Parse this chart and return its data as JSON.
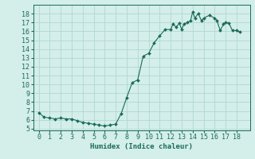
{
  "x": [
    0,
    0.5,
    1,
    1.5,
    2,
    2.5,
    3,
    3.5,
    4,
    4.5,
    5,
    5.5,
    6,
    6.5,
    7,
    7.5,
    8,
    8.5,
    9,
    9.5,
    10,
    10.5,
    11,
    11.5,
    12,
    12.2,
    12.5,
    12.8,
    13,
    13.2,
    13.5,
    13.8,
    14,
    14.2,
    14.5,
    14.8,
    15,
    15.5,
    16,
    16.2,
    16.5,
    16.8,
    17,
    17.3,
    17.6,
    18,
    18.3
  ],
  "y": [
    6.8,
    6.3,
    6.2,
    6.1,
    6.2,
    6.1,
    6.1,
    5.9,
    5.7,
    5.6,
    5.5,
    5.4,
    5.3,
    5.4,
    5.5,
    6.7,
    8.5,
    10.2,
    10.5,
    13.2,
    13.5,
    14.7,
    15.5,
    16.2,
    16.2,
    16.8,
    16.5,
    16.9,
    16.2,
    16.8,
    17.0,
    17.2,
    18.2,
    17.5,
    18.0,
    17.2,
    17.5,
    17.8,
    17.5,
    17.2,
    16.1,
    16.8,
    17.0,
    16.9,
    16.1,
    16.1,
    15.9
  ],
  "line_color": "#1a6b5a",
  "marker_color": "#1a6b5a",
  "bg_color": "#d4eeea",
  "grid_color": "#b0d8d0",
  "xlabel": "Humidex (Indice chaleur)",
  "xlim": [
    -0.5,
    19.2
  ],
  "ylim": [
    4.8,
    19.0
  ],
  "xticks": [
    0,
    1,
    2,
    3,
    4,
    5,
    6,
    7,
    8,
    9,
    10,
    11,
    12,
    13,
    14,
    15,
    16,
    17,
    18
  ],
  "yticks": [
    5,
    6,
    7,
    8,
    9,
    10,
    11,
    12,
    13,
    14,
    15,
    16,
    17,
    18
  ],
  "font_color": "#1a6b5a",
  "label_fontsize": 6.5,
  "tick_fontsize": 6.0,
  "marker_size": 2.0,
  "linewidth": 0.8
}
